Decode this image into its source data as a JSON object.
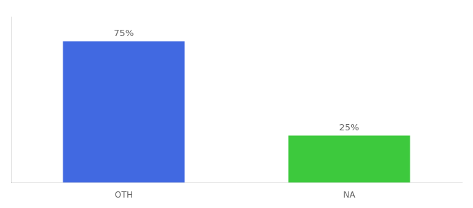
{
  "chart_data": {
    "type": "bar",
    "categories": [
      "OTH",
      "NA"
    ],
    "values": [
      75,
      25
    ],
    "value_labels": [
      "75%",
      "25%"
    ],
    "data_labels": true,
    "colors": [
      "#4169e1",
      "#3dc93d"
    ],
    "ylim": [
      0,
      88
    ],
    "tick_labels": "x",
    "grid": false
  }
}
